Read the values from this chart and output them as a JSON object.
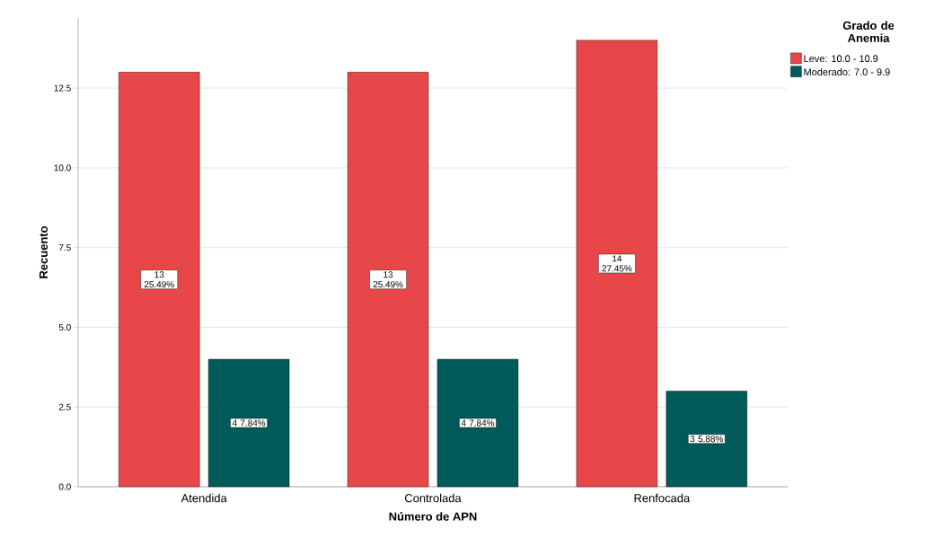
{
  "chart_data": {
    "type": "bar",
    "xlabel": "Número de APN",
    "ylabel": "Recuento",
    "legend_title": "Grado de Anemia",
    "categories": [
      "Atendida",
      "Controlada",
      "Renfocada"
    ],
    "series": [
      {
        "name": "Leve: 10.0 - 10.9",
        "color": "#e8474a",
        "values": [
          13,
          13,
          14
        ],
        "value_labels": [
          "13 25.49%",
          "13 25.49%",
          "14 27.45%"
        ]
      },
      {
        "name": "Moderado: 7.0 - 9.9",
        "color": "#005a5a",
        "values": [
          4,
          4,
          3
        ],
        "value_labels": [
          "4 7.84%",
          "4 7.84%",
          "3 5.88%"
        ]
      }
    ],
    "ylim": [
      0,
      14.7
    ],
    "yticks": [
      {
        "value": 0,
        "label": "0.0"
      },
      {
        "value": 2.5,
        "label": "2.5"
      },
      {
        "value": 5,
        "label": "5.0"
      },
      {
        "value": 7.5,
        "label": "7.5"
      },
      {
        "value": 10,
        "label": "10.0"
      },
      {
        "value": 12.5,
        "label": "12.5"
      }
    ],
    "grid": "y",
    "legend": "right"
  }
}
